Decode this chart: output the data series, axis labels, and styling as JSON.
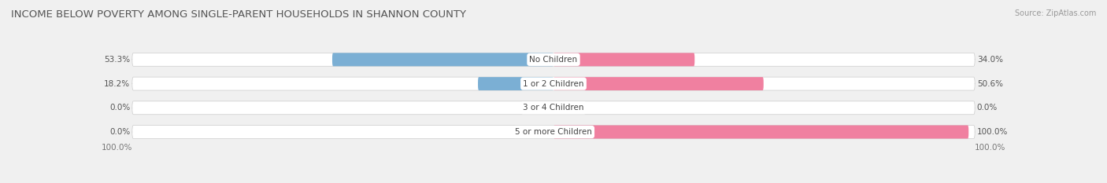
{
  "title": "INCOME BELOW POVERTY AMONG SINGLE-PARENT HOUSEHOLDS IN SHANNON COUNTY",
  "source": "Source: ZipAtlas.com",
  "categories": [
    "No Children",
    "1 or 2 Children",
    "3 or 4 Children",
    "5 or more Children"
  ],
  "single_father": [
    53.3,
    18.2,
    0.0,
    0.0
  ],
  "single_mother": [
    34.0,
    50.6,
    0.0,
    100.0
  ],
  "father_color": "#7bafd4",
  "mother_color": "#f080a0",
  "bar_height": 0.55,
  "background_color": "#f0f0f0",
  "bar_background": "#e8e8e8",
  "bar_bg_color": "#ffffff",
  "max_val": 100.0,
  "x_left_label": "100.0%",
  "x_right_label": "100.0%",
  "title_fontsize": 9.5,
  "label_fontsize": 7.5,
  "tick_fontsize": 7.5,
  "source_fontsize": 7.0
}
